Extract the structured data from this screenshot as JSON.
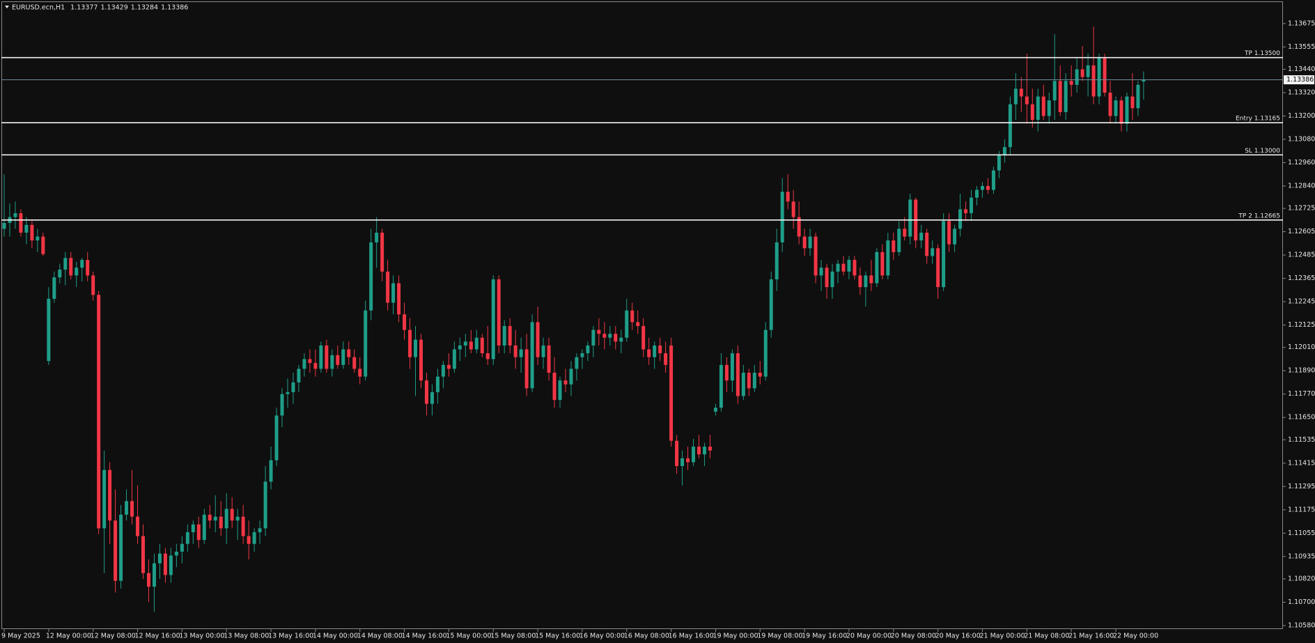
{
  "chart_data": {
    "type": "candlestick",
    "title": "EURUSD.ecn,H1",
    "x": [
      "9 May 2025",
      null,
      null,
      null,
      null,
      null,
      null,
      null,
      "12 May 00:00",
      null,
      null,
      null,
      null,
      null,
      null,
      null,
      "12 May 08:00",
      null,
      null,
      null,
      null,
      null,
      null,
      null,
      "12 May 16:00",
      null,
      null,
      null,
      null,
      null,
      null,
      null,
      "13 May 00:00",
      null,
      null,
      null,
      null,
      null,
      null,
      null,
      "13 May 08:00",
      null,
      null,
      null,
      null,
      null,
      null,
      null,
      "13 May 16:00",
      null,
      null,
      null,
      null,
      null,
      null,
      null,
      "14 May 00:00",
      null,
      null,
      null,
      null,
      null,
      null,
      null,
      "14 May 08:00",
      null,
      null,
      null,
      null,
      null,
      null,
      null,
      "14 May 16:00",
      null,
      null,
      null,
      null,
      null,
      null,
      null,
      "15 May 00:00",
      null,
      null,
      null,
      null,
      null,
      null,
      null,
      "15 May 08:00",
      null,
      null,
      null,
      null,
      null,
      null,
      null,
      "15 May 16:00",
      null,
      null,
      null,
      null,
      null,
      null,
      null,
      "16 May 00:00",
      null,
      null,
      null,
      null,
      null,
      null,
      null,
      "16 May 08:00",
      null,
      null,
      null,
      null,
      null,
      null,
      null,
      "16 May 16:00",
      null,
      null,
      null,
      null,
      null,
      null,
      null,
      "19 May 00:00",
      null,
      null,
      null,
      null,
      null,
      null,
      null,
      "19 May 08:00",
      null,
      null,
      null,
      null,
      null,
      null,
      null,
      "19 May 16:00",
      null,
      null,
      null,
      null,
      null,
      null,
      null,
      "20 May 00:00",
      null,
      null,
      null,
      null,
      null,
      null,
      null,
      "20 May 08:00",
      null,
      null,
      null,
      null,
      null,
      null,
      null,
      "20 May 16:00",
      null,
      null,
      null,
      null,
      null,
      null,
      null,
      "21 May 00:00",
      null,
      null,
      null,
      null,
      null,
      null,
      null,
      "21 May 08:00",
      null,
      null,
      null,
      null,
      null,
      null,
      null,
      "21 May 16:00",
      null,
      null,
      null,
      null,
      null,
      null,
      null,
      "22 May 00:00",
      null,
      null,
      null,
      null,
      null
    ],
    "open": [
      1.1262,
      1.1265,
      1.1268,
      1.127,
      1.126,
      1.1264,
      1.1256,
      1.1258,
      1.1194,
      1.1226,
      1.1237,
      1.1241,
      1.1247,
      1.1238,
      1.1242,
      1.1246,
      1.1238,
      1.1228,
      1.1108,
      1.1138,
      1.1112,
      1.1081,
      1.1115,
      1.1122,
      1.1114,
      1.1104,
      1.1085,
      1.1078,
      1.109,
      1.1095,
      1.1084,
      1.1094,
      1.1096,
      1.11,
      1.1106,
      1.111,
      1.1102,
      1.1115,
      1.1112,
      1.1114,
      1.1108,
      1.1118,
      1.1112,
      1.1114,
      1.1104,
      1.11,
      1.1106,
      1.1108,
      1.1132,
      1.1143,
      1.1166,
      1.1177,
      1.1178,
      1.1183,
      1.119,
      1.1195,
      1.1193,
      1.119,
      1.1202,
      1.119,
      1.1197,
      1.1192,
      1.12,
      1.1196,
      1.119,
      1.1186,
      1.122,
      1.1255,
      1.126,
      1.124,
      1.1224,
      1.1234,
      1.1218,
      1.121,
      1.1196,
      1.1205,
      1.1184,
      1.1172,
      1.1178,
      1.1186,
      1.1192,
      1.119,
      1.12,
      1.1202,
      1.1204,
      1.12,
      1.1206,
      1.1198,
      1.1195,
      1.1236,
      1.1202,
      1.1212,
      1.1202,
      1.1196,
      1.12,
      1.118,
      1.1214,
      1.1196,
      1.1202,
      1.1188,
      1.1174,
      1.1184,
      1.1182,
      1.119,
      1.1196,
      1.1198,
      1.1202,
      1.121,
      1.1208,
      1.1206,
      1.1208,
      1.1204,
      1.1206,
      1.122,
      1.1214,
      1.1212,
      1.12,
      1.1196,
      1.1202,
      1.1198,
      1.1202,
      1.1153,
      1.114,
      1.1144,
      1.1142,
      1.115,
      1.1146,
      1.115,
      1.1168,
      1.117,
      1.1192,
      1.1184,
      1.1198,
      1.1176,
      1.1188,
      1.118,
      1.1188,
      1.1186,
      1.121,
      1.1236,
      1.1255,
      1.1281,
      1.1276,
      1.1268,
      1.1258,
      1.1252,
      1.1258,
      1.1238,
      1.1242,
      1.1232,
      1.124,
      1.1244,
      1.124,
      1.1246,
      1.1238,
      1.1232,
      1.1238,
      1.1234,
      1.125,
      1.1238,
      1.1256,
      1.125,
      1.1262,
      1.1258,
      1.1277,
      1.1256,
      1.126,
      1.1248,
      1.1252,
      1.1232,
      1.1266,
      1.1254,
      1.1262,
      1.1272,
      1.127,
      1.1278,
      1.1282,
      1.1284,
      1.1282,
      1.1292,
      1.13,
      1.1304,
      1.1326,
      1.1334,
      1.133,
      1.1326,
      1.1318,
      1.133,
      1.132,
      1.1328,
      1.1338,
      1.1322,
      1.1338,
      1.1336,
      1.1344,
      1.134,
      1.1346,
      1.133,
      1.135,
      1.1332,
      1.132,
      1.1328,
      1.1316,
      1.133,
      1.1324,
      1.13377
    ],
    "high": [
      1.129,
      1.1275,
      1.1276,
      1.1272,
      1.1268,
      1.1266,
      1.1262,
      1.126,
      1.1232,
      1.124,
      1.1244,
      1.125,
      1.125,
      1.1245,
      1.1247,
      1.125,
      1.124,
      1.123,
      1.1148,
      1.1142,
      1.1128,
      1.112,
      1.1128,
      1.1138,
      1.113,
      1.111,
      1.1092,
      1.1095,
      1.11,
      1.1098,
      1.1098,
      1.11,
      1.1104,
      1.111,
      1.1112,
      1.1114,
      1.1118,
      1.112,
      1.1125,
      1.1122,
      1.1126,
      1.1124,
      1.1118,
      1.112,
      1.1112,
      1.1108,
      1.1112,
      1.114,
      1.115,
      1.117,
      1.118,
      1.1185,
      1.1188,
      1.1192,
      1.1198,
      1.12,
      1.12,
      1.1204,
      1.1205,
      1.12,
      1.1202,
      1.1204,
      1.1204,
      1.12,
      1.1196,
      1.1225,
      1.1262,
      1.1268,
      1.1262,
      1.1246,
      1.1238,
      1.1238,
      1.1224,
      1.1216,
      1.1212,
      1.1208,
      1.1188,
      1.1182,
      1.119,
      1.1194,
      1.1198,
      1.1204,
      1.1206,
      1.1208,
      1.121,
      1.121,
      1.1208,
      1.1212,
      1.1238,
      1.1238,
      1.1215,
      1.1216,
      1.121,
      1.1206,
      1.1208,
      1.1218,
      1.1222,
      1.1206,
      1.1206,
      1.1196,
      1.1186,
      1.119,
      1.1194,
      1.1198,
      1.12,
      1.1204,
      1.1212,
      1.1216,
      1.1214,
      1.1212,
      1.1212,
      1.121,
      1.1226,
      1.1224,
      1.122,
      1.1216,
      1.1206,
      1.1204,
      1.1206,
      1.1204,
      1.1206,
      1.1156,
      1.1148,
      1.115,
      1.1154,
      1.1156,
      1.1152,
      1.1156,
      1.1172,
      1.1198,
      1.1196,
      1.12,
      1.1202,
      1.1192,
      1.119,
      1.1192,
      1.1194,
      1.1214,
      1.124,
      1.1262,
      1.1288,
      1.129,
      1.1282,
      1.1276,
      1.1262,
      1.1262,
      1.126,
      1.1246,
      1.1244,
      1.1244,
      1.1246,
      1.1248,
      1.1248,
      1.1248,
      1.1242,
      1.124,
      1.1246,
      1.1252,
      1.1254,
      1.126,
      1.126,
      1.1266,
      1.1268,
      1.128,
      1.1278,
      1.1264,
      1.1262,
      1.1256,
      1.1254,
      1.127,
      1.127,
      1.1264,
      1.128,
      1.1276,
      1.1282,
      1.1284,
      1.1286,
      1.1288,
      1.1294,
      1.1302,
      1.1308,
      1.133,
      1.1342,
      1.134,
      1.1352,
      1.1334,
      1.1334,
      1.1336,
      1.1332,
      1.1362,
      1.1346,
      1.1342,
      1.1346,
      1.135,
      1.1356,
      1.1352,
      1.1366,
      1.1352,
      1.1352,
      1.1338,
      1.133,
      1.133,
      1.1332,
      1.1342,
      1.1338,
      1.13429
    ],
    "low": [
      1.1258,
      1.1258,
      1.1262,
      1.1258,
      1.1254,
      1.1252,
      1.125,
      1.1248,
      1.1192,
      1.1224,
      1.1234,
      1.1233,
      1.1236,
      1.1232,
      1.1235,
      1.1235,
      1.1225,
      1.1105,
      1.1085,
      1.11,
      1.1075,
      1.1077,
      1.1112,
      1.111,
      1.11,
      1.1082,
      1.107,
      1.1065,
      1.1082,
      1.108,
      1.108,
      1.1088,
      1.109,
      1.1096,
      1.11,
      1.1098,
      1.11,
      1.1108,
      1.1106,
      1.1104,
      1.11,
      1.1108,
      1.1102,
      1.11,
      1.1092,
      1.1096,
      1.11,
      1.1104,
      1.1128,
      1.114,
      1.116,
      1.117,
      1.1172,
      1.1178,
      1.1186,
      1.1188,
      1.1186,
      1.1188,
      1.1188,
      1.1186,
      1.119,
      1.119,
      1.1192,
      1.1188,
      1.1182,
      1.1184,
      1.1215,
      1.1242,
      1.1235,
      1.122,
      1.1218,
      1.1214,
      1.1205,
      1.119,
      1.1176,
      1.118,
      1.1166,
      1.1166,
      1.1172,
      1.118,
      1.1186,
      1.1188,
      1.1194,
      1.1196,
      1.1198,
      1.1198,
      1.1196,
      1.1192,
      1.1192,
      1.1198,
      1.1198,
      1.1198,
      1.119,
      1.1188,
      1.1176,
      1.1178,
      1.1192,
      1.119,
      1.1184,
      1.117,
      1.117,
      1.1178,
      1.1176,
      1.1184,
      1.119,
      1.1194,
      1.1196,
      1.1202,
      1.12,
      1.1202,
      1.12,
      1.1198,
      1.1204,
      1.121,
      1.1208,
      1.1196,
      1.1192,
      1.119,
      1.1194,
      1.1188,
      1.115,
      1.1136,
      1.113,
      1.1138,
      1.114,
      1.1144,
      1.114,
      1.1144,
      1.1166,
      1.1168,
      1.1178,
      1.1178,
      1.1172,
      1.1174,
      1.1176,
      1.1178,
      1.1182,
      1.1184,
      1.1206,
      1.123,
      1.125,
      1.1272,
      1.1262,
      1.1254,
      1.1248,
      1.1248,
      1.1234,
      1.123,
      1.1226,
      1.1226,
      1.1234,
      1.1238,
      1.1236,
      1.1236,
      1.1228,
      1.1222,
      1.123,
      1.1232,
      1.1236,
      1.1236,
      1.1246,
      1.1248,
      1.1256,
      1.1254,
      1.1252,
      1.1252,
      1.1244,
      1.1244,
      1.1226,
      1.123,
      1.125,
      1.125,
      1.1258,
      1.1266,
      1.1266,
      1.1274,
      1.1278,
      1.128,
      1.128,
      1.1288,
      1.1296,
      1.13,
      1.1318,
      1.1322,
      1.1316,
      1.1314,
      1.1312,
      1.1318,
      1.1316,
      1.1318,
      1.132,
      1.1318,
      1.133,
      1.1332,
      1.1338,
      1.133,
      1.1326,
      1.1326,
      1.133,
      1.1316,
      1.1316,
      1.1312,
      1.1312,
      1.1318,
      1.132,
      1.13284
    ],
    "close": [
      1.1265,
      1.1268,
      1.127,
      1.126,
      1.1264,
      1.1256,
      1.1258,
      1.1249,
      1.1226,
      1.1237,
      1.1241,
      1.1247,
      1.1238,
      1.1242,
      1.1246,
      1.1238,
      1.1228,
      1.1108,
      1.1138,
      1.1112,
      1.1081,
      1.1115,
      1.1122,
      1.1114,
      1.1104,
      1.1085,
      1.1078,
      1.109,
      1.1095,
      1.1084,
      1.1094,
      1.1096,
      1.11,
      1.1106,
      1.111,
      1.1102,
      1.1115,
      1.1112,
      1.1114,
      1.1108,
      1.1118,
      1.1112,
      1.1114,
      1.1104,
      1.11,
      1.1106,
      1.1108,
      1.1132,
      1.1143,
      1.1166,
      1.1177,
      1.1178,
      1.1183,
      1.119,
      1.1195,
      1.1193,
      1.119,
      1.1202,
      1.119,
      1.1197,
      1.1192,
      1.12,
      1.1196,
      1.119,
      1.1186,
      1.122,
      1.1255,
      1.126,
      1.124,
      1.1224,
      1.1234,
      1.1218,
      1.121,
      1.1196,
      1.1205,
      1.1184,
      1.1172,
      1.1178,
      1.1186,
      1.1192,
      1.119,
      1.12,
      1.1202,
      1.1204,
      1.12,
      1.1206,
      1.1198,
      1.1195,
      1.1236,
      1.1202,
      1.1212,
      1.1202,
      1.1196,
      1.12,
      1.118,
      1.1214,
      1.1196,
      1.1202,
      1.1188,
      1.1174,
      1.1184,
      1.1182,
      1.119,
      1.1196,
      1.1198,
      1.1202,
      1.121,
      1.1208,
      1.1206,
      1.1208,
      1.1204,
      1.1206,
      1.122,
      1.1214,
      1.1212,
      1.12,
      1.1196,
      1.1202,
      1.1198,
      1.1192,
      1.1153,
      1.114,
      1.1144,
      1.1142,
      1.115,
      1.1146,
      1.115,
      1.1148,
      1.117,
      1.1192,
      1.1184,
      1.1198,
      1.1176,
      1.1188,
      1.118,
      1.1188,
      1.1186,
      1.121,
      1.1236,
      1.1255,
      1.1281,
      1.1276,
      1.1268,
      1.1258,
      1.1252,
      1.1258,
      1.1238,
      1.1242,
      1.1232,
      1.124,
      1.1244,
      1.124,
      1.1246,
      1.1238,
      1.1232,
      1.1238,
      1.1234,
      1.125,
      1.1238,
      1.1256,
      1.125,
      1.1262,
      1.1258,
      1.1277,
      1.1256,
      1.126,
      1.1248,
      1.1252,
      1.1232,
      1.1266,
      1.1254,
      1.1262,
      1.1272,
      1.127,
      1.1278,
      1.1282,
      1.1284,
      1.1282,
      1.1292,
      1.13,
      1.1304,
      1.1326,
      1.1334,
      1.133,
      1.1326,
      1.1318,
      1.133,
      1.132,
      1.1328,
      1.1338,
      1.1322,
      1.1338,
      1.1336,
      1.1344,
      1.134,
      1.1346,
      1.133,
      1.135,
      1.1332,
      1.132,
      1.1328,
      1.1316,
      1.133,
      1.1324,
      1.1336,
      1.13386
    ],
    "up_color": "#1f9e89",
    "down_color": "#f23645",
    "ylim": [
      1.10562,
      1.13789
    ],
    "yticks": [
      1.13675,
      1.13555,
      {
        "value": 1.1344,
        "label": "1.13440"
      },
      {
        "value": 1.1332,
        "label": "1.13320"
      },
      {
        "value": 1.132,
        "label": "1.13200"
      },
      {
        "value": 1.1308,
        "label": "1.13080"
      },
      {
        "value": 1.1296,
        "label": "1.12960"
      },
      {
        "value": 1.1284,
        "label": "1.12840"
      },
      1.12725,
      1.12605,
      1.12485,
      1.12365,
      1.12245,
      1.12125,
      {
        "value": 1.1201,
        "label": "1.12010"
      },
      {
        "value": 1.1189,
        "label": "1.11890"
      },
      {
        "value": 1.1177,
        "label": "1.11770"
      },
      {
        "value": 1.1165,
        "label": "1.11650"
      },
      1.11535,
      1.11415,
      1.11295,
      1.11175,
      1.11055,
      1.10935,
      {
        "value": 1.1082,
        "label": "1.10820"
      },
      {
        "value": 1.107,
        "label": "1.10700"
      },
      {
        "value": 1.1058,
        "label": "1.10580"
      }
    ],
    "levels": [
      {
        "label": "TP 1.13500",
        "value": 1.135
      },
      {
        "label": "Entry 1.13165",
        "value": 1.13165
      },
      {
        "label": "SL 1.13000",
        "value": 1.13
      },
      {
        "label": "TP 2 1.12665",
        "value": 1.12665
      }
    ]
  }
}
